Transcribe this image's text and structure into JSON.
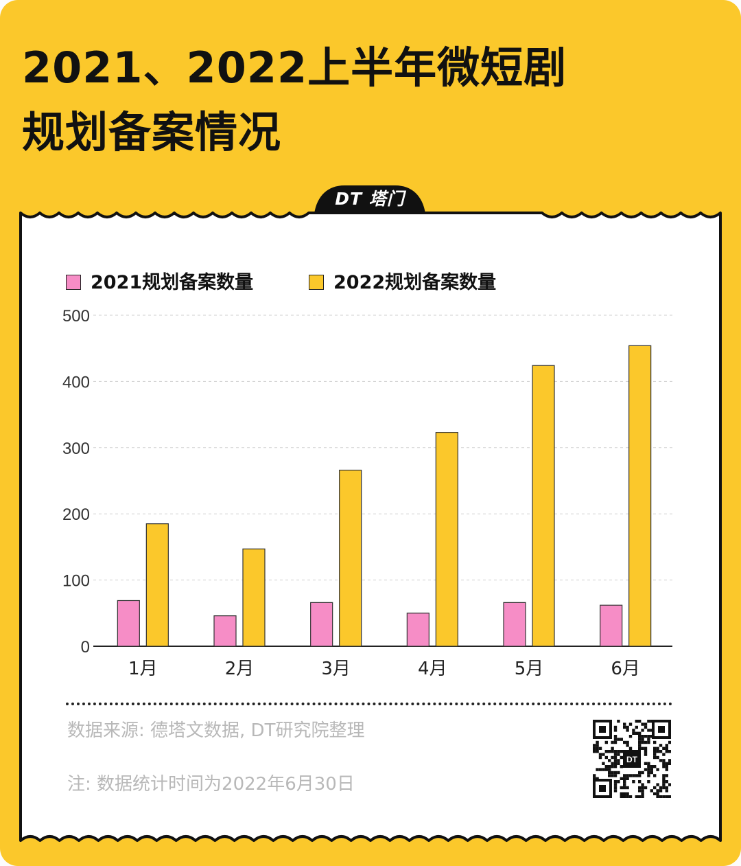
{
  "title": {
    "line1": "2021、2022上半年微短剧",
    "line2": "规划备案情况"
  },
  "badge": "DT 塔门",
  "colors": {
    "background": "#fbc82b",
    "series_2021": "#f68dc6",
    "series_2022": "#fbc82b",
    "card": "#ffffff"
  },
  "chart_data": {
    "type": "bar",
    "categories": [
      "1月",
      "2月",
      "3月",
      "4月",
      "5月",
      "6月"
    ],
    "series": [
      {
        "name": "2021规划备案数量",
        "values": [
          69,
          46,
          66,
          50,
          66,
          62
        ]
      },
      {
        "name": "2022规划备案数量",
        "values": [
          185,
          147,
          266,
          323,
          424,
          454
        ]
      }
    ],
    "yticks": [
      "0",
      "100",
      "200",
      "300",
      "400",
      "500"
    ],
    "ylim": [
      0,
      500
    ],
    "grid": true,
    "legend": "top-left"
  },
  "footer": {
    "source": "数据来源: 德塔文数据, DT研究院整理",
    "note": "注: 数据统计时间为2022年6月30日",
    "qr_label": "DT"
  }
}
